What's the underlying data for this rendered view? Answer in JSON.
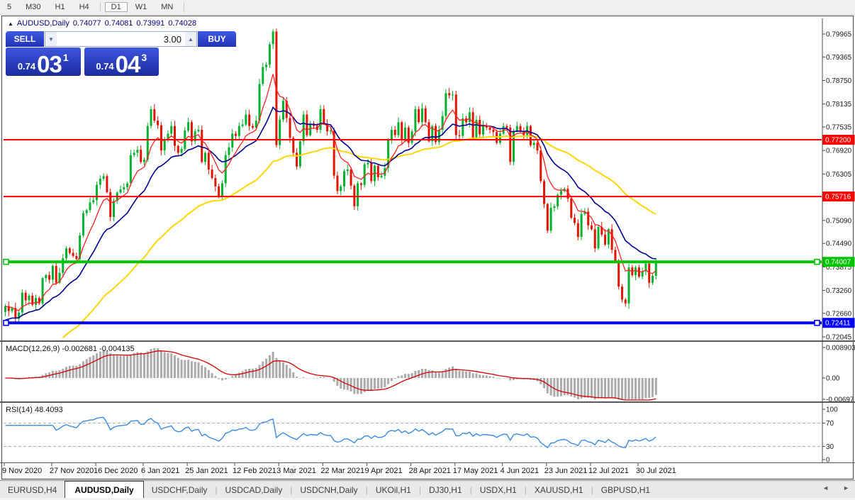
{
  "toolbar": {
    "buttons": [
      {
        "label": "5",
        "active": false
      },
      {
        "label": "M30",
        "active": false
      },
      {
        "label": "H1",
        "active": false
      },
      {
        "label": "H4",
        "active": false
      },
      {
        "label": "D1",
        "active": true
      },
      {
        "label": "W1",
        "active": false
      },
      {
        "label": "MN",
        "active": false
      }
    ]
  },
  "window_title": {
    "symbol": "AUDUSD,Daily",
    "open": "0.74077",
    "high": "0.74081",
    "low": "0.73991",
    "close": "0.74028"
  },
  "one_click": {
    "sell_label": "SELL",
    "buy_label": "BUY",
    "volume": "3.00",
    "sell": {
      "prefix": "0.74",
      "big": "03",
      "sup": "1"
    },
    "buy": {
      "prefix": "0.74",
      "big": "04",
      "sup": "3"
    }
  },
  "icons": {
    "title_arrow": "▲",
    "volume_down": "▼",
    "volume_up": "▲",
    "tab_scroll_left": "◄",
    "tab_scroll_right": "►"
  },
  "chart_data": {
    "type": "candlestick",
    "symbol": "AUDUSD",
    "timeframe": "Daily",
    "first_open": 0.727,
    "closes": [
      0.7285,
      0.7272,
      0.728,
      0.7252,
      0.7268,
      0.732,
      0.73,
      0.7312,
      0.7288,
      0.7306,
      0.7292,
      0.7358,
      0.7366,
      0.7354,
      0.739,
      0.7346,
      0.7372,
      0.741,
      0.7436,
      0.7424,
      0.7416,
      0.7408,
      0.747,
      0.7528,
      0.7536,
      0.7556,
      0.7562,
      0.7602,
      0.7618,
      0.7625,
      0.7583,
      0.7518,
      0.756,
      0.7582,
      0.759,
      0.7596,
      0.7606,
      0.768,
      0.7686,
      0.7694,
      0.7662,
      0.7668,
      0.7756,
      0.78,
      0.777,
      0.7758,
      0.7692,
      0.772,
      0.7736,
      0.7756,
      0.7704,
      0.7686,
      0.7696,
      0.7744,
      0.7766,
      0.7716,
      0.7742,
      0.7746,
      0.7662,
      0.7686,
      0.7642,
      0.762,
      0.7598,
      0.7572,
      0.7606,
      0.768,
      0.77,
      0.7736,
      0.773,
      0.7756,
      0.776,
      0.7786,
      0.7756,
      0.7752,
      0.777,
      0.7866,
      0.791,
      0.7916,
      0.797,
      0.8003,
      0.7706,
      0.7773,
      0.7822,
      0.7777,
      0.7725,
      0.7686,
      0.765,
      0.7716,
      0.7786,
      0.7732,
      0.7762,
      0.7756,
      0.7746,
      0.78,
      0.7762,
      0.7742,
      0.7744,
      0.7626,
      0.7586,
      0.7598,
      0.7638,
      0.7642,
      0.76,
      0.7546,
      0.7606,
      0.7602,
      0.7656,
      0.766,
      0.7612,
      0.7652,
      0.7622,
      0.7626,
      0.7646,
      0.772,
      0.7746,
      0.7732,
      0.7766,
      0.772,
      0.7752,
      0.7712,
      0.7742,
      0.78,
      0.7766,
      0.7802,
      0.7766,
      0.7716,
      0.7756,
      0.7714,
      0.7746,
      0.7782,
      0.7842,
      0.7836,
      0.7838,
      0.7732,
      0.773,
      0.7776,
      0.7766,
      0.7792,
      0.7726,
      0.7772,
      0.7734,
      0.7756,
      0.7752,
      0.7746,
      0.774,
      0.7712,
      0.7736,
      0.7756,
      0.7752,
      0.7662,
      0.7742,
      0.7756,
      0.7742,
      0.7732,
      0.7756,
      0.7706,
      0.7712,
      0.7692,
      0.7612,
      0.7552,
      0.7482,
      0.7542,
      0.7546,
      0.7576,
      0.7586,
      0.7592,
      0.7566,
      0.7516,
      0.7502,
      0.7466,
      0.7526,
      0.7532,
      0.7496,
      0.7486,
      0.7436,
      0.7492,
      0.7472,
      0.7446,
      0.7486,
      0.7432,
      0.7402,
      0.7336,
      0.7302,
      0.7292,
      0.7386,
      0.7366,
      0.7386,
      0.7362,
      0.7376,
      0.7396,
      0.7346,
      0.7364,
      0.74028
    ],
    "price_axis_ticks": [
      "0.79965",
      "0.79365",
      "0.78750",
      "0.78135",
      "0.77535",
      "0.76920",
      "0.76305",
      "0.75090",
      "0.74490",
      "0.73875",
      "0.73260",
      "0.72660",
      "0.72045"
    ],
    "hlines": [
      {
        "value": 0.772,
        "label": "0.77200",
        "color": "#FF0000",
        "width": 2,
        "marker": false
      },
      {
        "value": 0.75716,
        "label": "0.75716",
        "color": "#FF0000",
        "width": 2,
        "marker": false
      },
      {
        "value": 0.74007,
        "label": "0.74007",
        "color": "#00C400",
        "width": 4,
        "marker": true
      },
      {
        "value": 0.72411,
        "label": "0.72411",
        "color": "#0000FF",
        "width": 4,
        "marker": true
      }
    ],
    "date_ticks": [
      {
        "bar": 0,
        "label": "9 Nov 2020"
      },
      {
        "bar": 14,
        "label": "27 Nov 2020"
      },
      {
        "bar": 27,
        "label": "16 Dec 2020"
      },
      {
        "bar": 41,
        "label": "6 Jan 2021"
      },
      {
        "bar": 54,
        "label": "25 Jan 2021"
      },
      {
        "bar": 68,
        "label": "12 Feb 2021"
      },
      {
        "bar": 81,
        "label": "3 Mar 2021"
      },
      {
        "bar": 94,
        "label": "22 Mar 2021"
      },
      {
        "bar": 107,
        "label": "9 Apr 2021"
      },
      {
        "bar": 120,
        "label": "28 Apr 2021"
      },
      {
        "bar": 133,
        "label": "17 May 2021"
      },
      {
        "bar": 147,
        "label": "4 Jun 2021"
      },
      {
        "bar": 160,
        "label": "23 Jun 2021"
      },
      {
        "bar": 173,
        "label": "12 Jul 2021"
      },
      {
        "bar": 187,
        "label": "30 Jul 2021"
      }
    ],
    "indicators": {
      "macd": {
        "label": "MACD(12,26,9)",
        "current": "-0.002681 -0.004135",
        "fast": 12,
        "slow": 26,
        "signal": 9,
        "axis_max": "0.008903",
        "axis_zero": "0.00",
        "axis_min": "-0.00697"
      },
      "rsi": {
        "label": "RSI(14)",
        "current": "48.4093",
        "period": 14,
        "levels": [
          "100",
          "70",
          "30",
          "0"
        ]
      }
    }
  },
  "tabs": {
    "items": [
      {
        "label": "EURUSD,H4",
        "active": false
      },
      {
        "label": "AUDUSD,Daily",
        "active": true
      },
      {
        "label": "USDCHF,Daily",
        "active": false
      },
      {
        "label": "USDCAD,Daily",
        "active": false
      },
      {
        "label": "USDCNH,Daily",
        "active": false
      },
      {
        "label": "UKOil,H1",
        "active": false
      },
      {
        "label": "DJ30,H1",
        "active": false
      },
      {
        "label": "USDX,H1",
        "active": false
      },
      {
        "label": "XAUUSD,H1",
        "active": false
      },
      {
        "label": "GBPUSD,H1",
        "active": false
      }
    ]
  },
  "colors": {
    "bull": "#00B22D",
    "bear": "#E01400",
    "ma_fast": "#FF2222",
    "ma_mid": "#000090",
    "ma_slow": "#FFD700",
    "macd_hist": "#ABABAB",
    "macd_signal": "#D40000",
    "rsi_line": "#3B8BE0",
    "axis_text": "#1A1A1A",
    "panel_blue": "#2742C8"
  }
}
